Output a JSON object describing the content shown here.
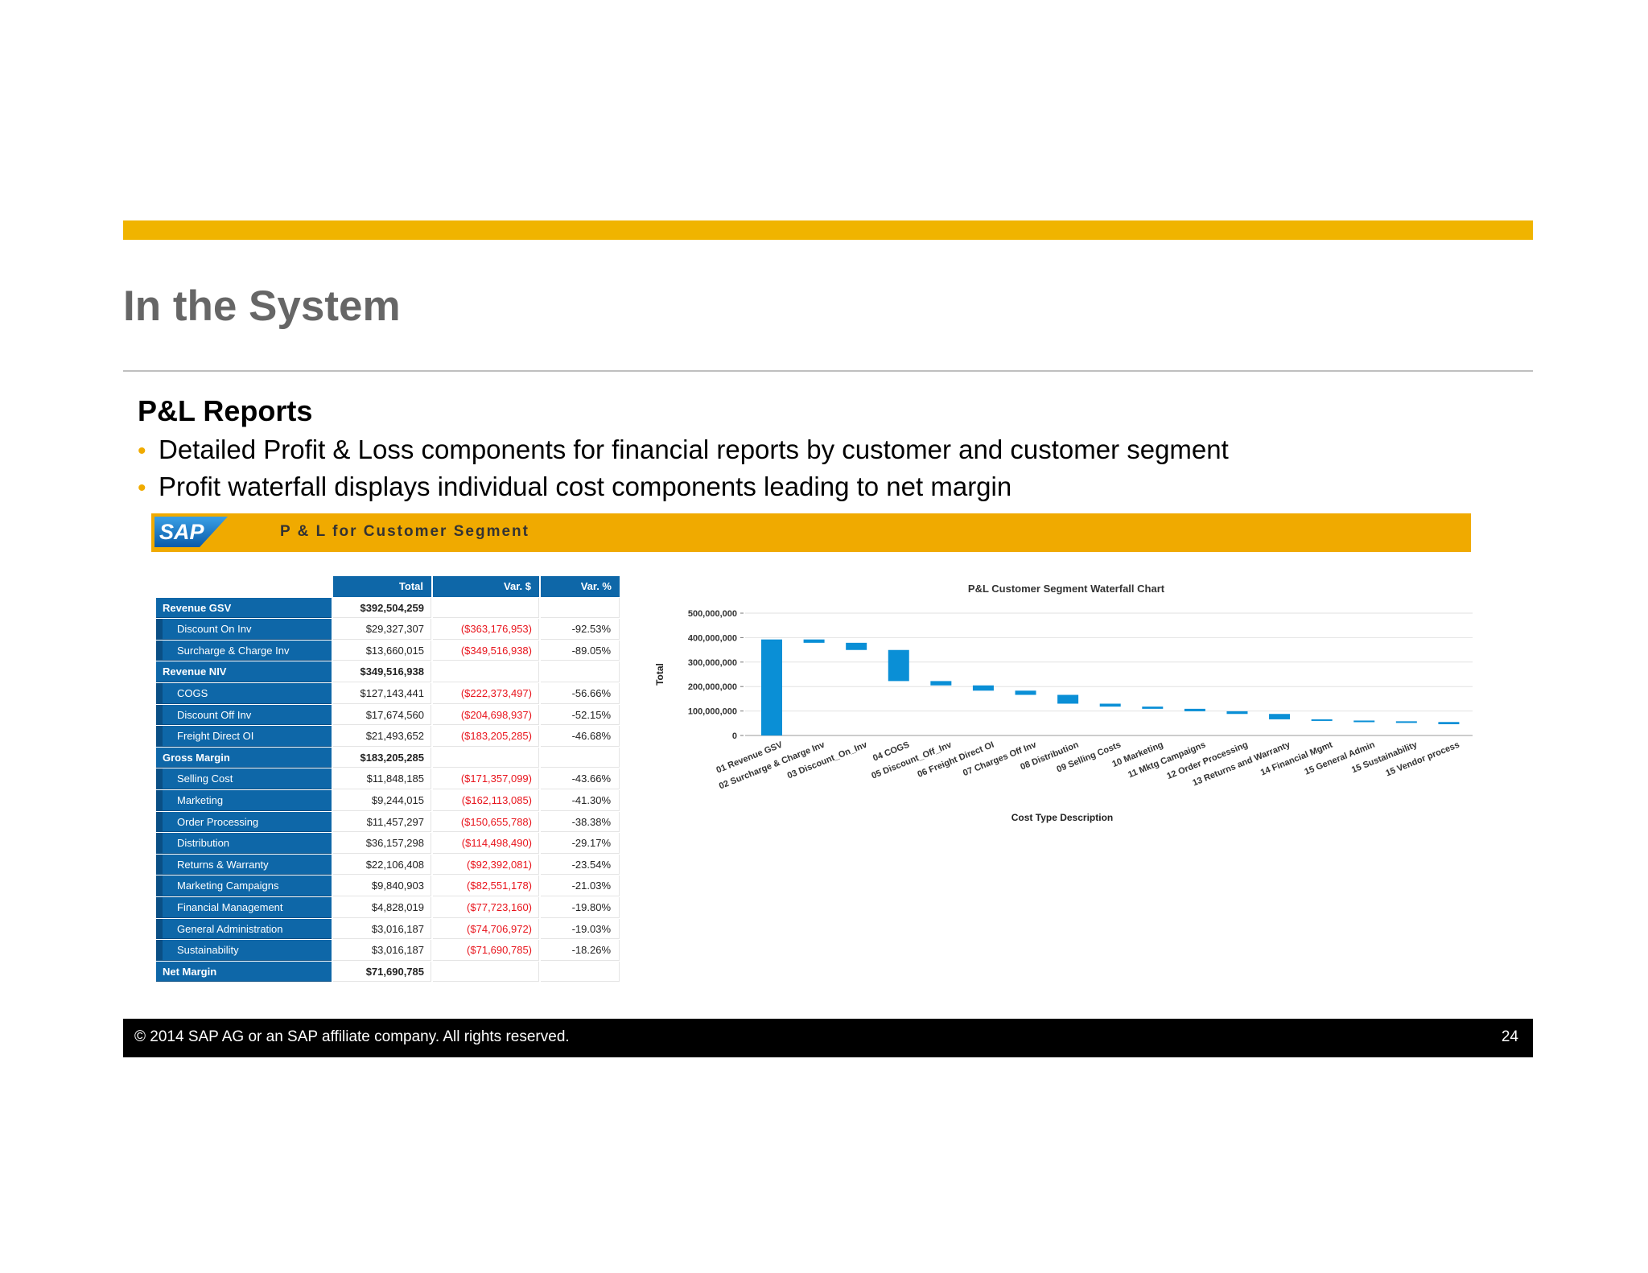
{
  "slide": {
    "title": "In the System",
    "section_heading": "P&L Reports",
    "bullets": [
      "Detailed Profit & Loss components for financial reports by customer and customer segment",
      "Profit waterfall displays individual cost components leading to net margin"
    ],
    "accent_color": "#f0b400",
    "footer": {
      "copyright": "© 2014 SAP AG or an SAP affiliate company. All rights reserved.",
      "page_number": "24"
    }
  },
  "report": {
    "logo_text": "SAP",
    "title": "P & L for Customer Segment",
    "header_color": "#f0aa00"
  },
  "table": {
    "columns": [
      "Total",
      "Var. $",
      "Var. %"
    ],
    "rows": [
      {
        "label": "Revenue GSV",
        "total": "$392,504,259",
        "var": "",
        "pct": "",
        "level": 0
      },
      {
        "label": "Discount On Inv",
        "total": "$29,327,307",
        "var": "($363,176,953)",
        "pct": "-92.53%",
        "level": 1
      },
      {
        "label": "Surcharge & Charge Inv",
        "total": "$13,660,015",
        "var": "($349,516,938)",
        "pct": "-89.05%",
        "level": 1
      },
      {
        "label": "Revenue NIV",
        "total": "$349,516,938",
        "var": "",
        "pct": "",
        "level": 0
      },
      {
        "label": "COGS",
        "total": "$127,143,441",
        "var": "($222,373,497)",
        "pct": "-56.66%",
        "level": 1
      },
      {
        "label": "Discount Off Inv",
        "total": "$17,674,560",
        "var": "($204,698,937)",
        "pct": "-52.15%",
        "level": 1
      },
      {
        "label": "Freight Direct OI",
        "total": "$21,493,652",
        "var": "($183,205,285)",
        "pct": "-46.68%",
        "level": 1
      },
      {
        "label": "Gross Margin",
        "total": "$183,205,285",
        "var": "",
        "pct": "",
        "level": 0
      },
      {
        "label": "Selling Cost",
        "total": "$11,848,185",
        "var": "($171,357,099)",
        "pct": "-43.66%",
        "level": 1
      },
      {
        "label": "Marketing",
        "total": "$9,244,015",
        "var": "($162,113,085)",
        "pct": "-41.30%",
        "level": 1
      },
      {
        "label": "Order Processing",
        "total": "$11,457,297",
        "var": "($150,655,788)",
        "pct": "-38.38%",
        "level": 1
      },
      {
        "label": "Distribution",
        "total": "$36,157,298",
        "var": "($114,498,490)",
        "pct": "-29.17%",
        "level": 1
      },
      {
        "label": "Returns & Warranty",
        "total": "$22,106,408",
        "var": "($92,392,081)",
        "pct": "-23.54%",
        "level": 1
      },
      {
        "label": "Marketing Campaigns",
        "total": "$9,840,903",
        "var": "($82,551,178)",
        "pct": "-21.03%",
        "level": 1
      },
      {
        "label": "Financial Management",
        "total": "$4,828,019",
        "var": "($77,723,160)",
        "pct": "-19.80%",
        "level": 1
      },
      {
        "label": "General Administration",
        "total": "$3,016,187",
        "var": "($74,706,972)",
        "pct": "-19.03%",
        "level": 1
      },
      {
        "label": "Sustainability",
        "total": "$3,016,187",
        "var": "($71,690,785)",
        "pct": "-18.26%",
        "level": 1
      },
      {
        "label": "Net Margin",
        "total": "$71,690,785",
        "var": "",
        "pct": "",
        "level": 0
      }
    ]
  },
  "chart_data": {
    "type": "bar",
    "subtype": "waterfall",
    "title": "P&L Customer Segment Waterfall Chart",
    "xlabel": "Cost Type Description",
    "ylabel": "Total",
    "ylim": [
      0,
      500000000
    ],
    "yticks": [
      0,
      100000000,
      200000000,
      300000000,
      400000000,
      500000000
    ],
    "ytick_labels": [
      "0",
      "100,000,000",
      "200,000,000",
      "300,000,000",
      "400,000,000",
      "500,000,000"
    ],
    "grid": true,
    "bar_color": "#0a8fd6",
    "categories": [
      "01 Revenue GSV",
      "02 Surcharge & Charge Inv",
      "03 Discount_On_Inv",
      "04 COGS",
      "05 Discount_Off_Inv",
      "06 Freight Direct OI",
      "07 Charges Off Inv",
      "08 Distribution",
      "09 Selling Costs",
      "10 Marketing",
      "11 Mktg Campaigns",
      "12 Order Processing",
      "13 Returns and Warranty",
      "14 Financial Mgmt",
      "15 General Admin",
      "15 Sustainability",
      "15 Vendor process"
    ],
    "bars": [
      {
        "start": 0,
        "end": 392500000
      },
      {
        "start": 392500000,
        "end": 378800000
      },
      {
        "start": 378800000,
        "end": 349500000
      },
      {
        "start": 349500000,
        "end": 222400000
      },
      {
        "start": 222400000,
        "end": 204700000
      },
      {
        "start": 204700000,
        "end": 183200000
      },
      {
        "start": 183200000,
        "end": 166000000
      },
      {
        "start": 166000000,
        "end": 130000000
      },
      {
        "start": 130000000,
        "end": 118000000
      },
      {
        "start": 118000000,
        "end": 109000000
      },
      {
        "start": 109000000,
        "end": 99000000
      },
      {
        "start": 99000000,
        "end": 88000000
      },
      {
        "start": 88000000,
        "end": 66000000
      },
      {
        "start": 66000000,
        "end": 61000000
      },
      {
        "start": 61000000,
        "end": 58000000
      },
      {
        "start": 58000000,
        "end": 55000000
      },
      {
        "start": 55000000,
        "end": 46000000
      }
    ]
  }
}
